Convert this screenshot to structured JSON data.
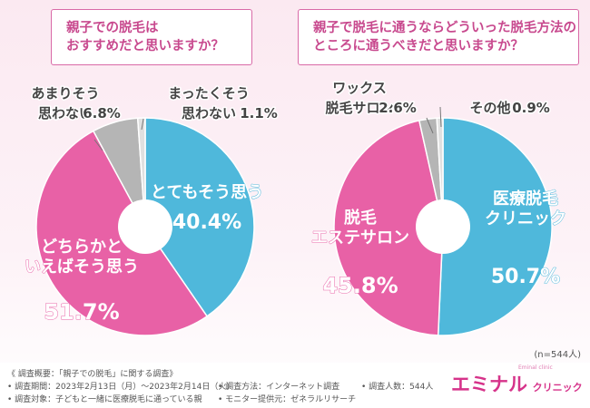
{
  "colors": {
    "pink": "#e861a6",
    "blue": "#4fb8db",
    "gray": "#b5b5b5",
    "lightgray": "#e0e0e0",
    "accent": "#c8498e"
  },
  "chart_data": [
    {
      "type": "pie",
      "title_lines": [
        "親子での脱毛は",
        "おすすめだと思いますか？"
      ],
      "slices": [
        {
          "label_lines": [
            "とてもそう思う"
          ],
          "value": 40.4,
          "color": "#4fb8db"
        },
        {
          "label_lines": [
            "どちらかと",
            "いえばそう思う"
          ],
          "value": 51.7,
          "color": "#e861a6"
        },
        {
          "label_lines": [
            "あまりそう",
            "思わない"
          ],
          "value": 6.8,
          "color": "#b5b5b5"
        },
        {
          "label_lines": [
            "まったくそう",
            "思わない"
          ],
          "value": 1.1,
          "color": "#e0e0e0"
        }
      ]
    },
    {
      "type": "pie",
      "title_lines": [
        "親子で脱毛に通うならどういった脱毛方法の",
        "ところに通うべきだと思いますか？"
      ],
      "slices": [
        {
          "label_lines": [
            "医療脱毛",
            "クリニック"
          ],
          "value": 50.7,
          "color": "#4fb8db"
        },
        {
          "label_lines": [
            "脱毛",
            "エステサロン"
          ],
          "value": 45.8,
          "color": "#e861a6"
        },
        {
          "label_lines": [
            "ワックス",
            "脱毛サロン"
          ],
          "value": 2.6,
          "color": "#b5b5b5"
        },
        {
          "label_lines": [
            "その他"
          ],
          "value": 0.9,
          "color": "#e0e0e0"
        }
      ]
    }
  ],
  "sample_note": "(n=544人)",
  "footer": {
    "l1": "《 調査概要：「親子での脱毛」に関する調査》",
    "l2": "• 調査期間：2023年2月13日（月）～2023年2月14日（火）",
    "l3": "• 調査対象：子どもと一緒に医療脱毛に通っている親",
    "l4": "• 調査方法：インターネット調査",
    "l5": "• モニター提供元：ゼネラルリサーチ",
    "l6": "• 調査人数：544人",
    "brand_main": "エミナル",
    "brand_sub": "クリニック",
    "brand_tag": "Eminal clinic"
  }
}
